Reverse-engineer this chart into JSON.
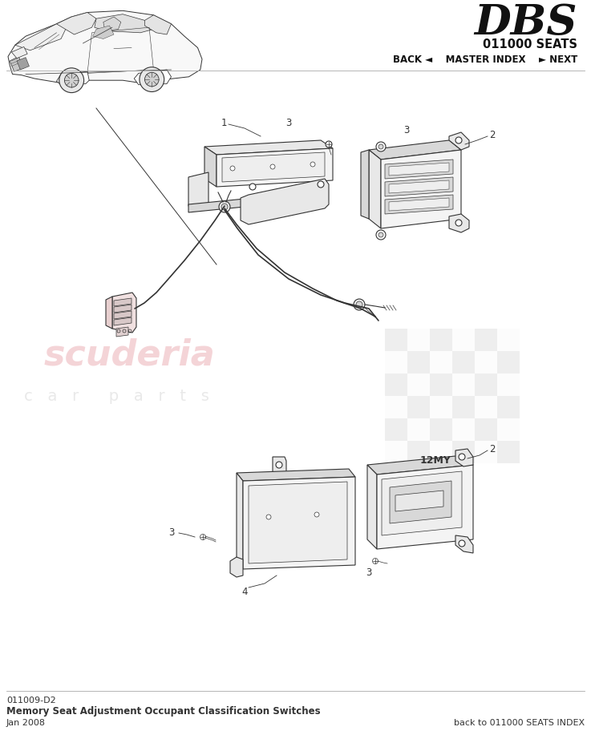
{
  "title_logo": "DBS",
  "subtitle": "011000 SEATS",
  "nav_text": "BACK ◄    MASTER INDEX    ► NEXT",
  "part_number": "011009-D2",
  "description_line1": "Memory Seat Adjustment Occupant Classification Switches",
  "description_line2": "Jan 2008",
  "footer_right": "back to 011000 SEATS INDEX",
  "label_12my": "12MY",
  "bg_color": "#ffffff",
  "line_color": "#333333",
  "lw_main": 0.8,
  "lw_thin": 0.5,
  "watermark_pink": "#e8a0a8",
  "watermark_gray": "#c0c0c0",
  "face_fill": "#f4f4f4",
  "part_fill": "#eeeeee",
  "dark_fill": "#d8d8d8",
  "shadow_fill": "#e8e8e8"
}
